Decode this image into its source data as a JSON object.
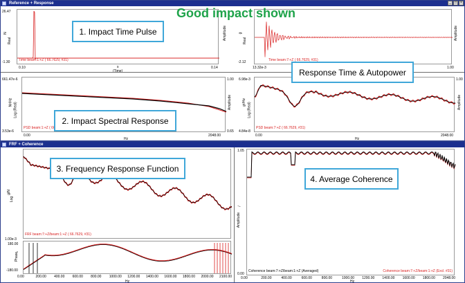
{
  "headline": "Good impact shown",
  "windows": {
    "top": {
      "title": "Reference + Response",
      "buttons": [
        "_",
        "□",
        "×"
      ]
    },
    "bottom": {
      "title": "FRF + Coherence",
      "buttons": [
        "_",
        "□",
        "×"
      ]
    }
  },
  "callouts": {
    "c1": "1. Impact Time Pulse",
    "c2": "2. Impact Spectral Response",
    "c3": "Response Time & Autopower",
    "c4": "3. Frequency Response Function",
    "c5": "4. Average Coherence"
  },
  "panels": {
    "time_ref": {
      "ymax": "26.47",
      "ymin": "-1.30",
      "xmin": "0.10",
      "xmax": "0.14",
      "xunit": "s",
      "xlabel": "(Time)",
      "ylabel_left": "N",
      "ylabel_left2": "Real",
      "ylabel_right": "Amplitude",
      "legend": "Time beam:1:+Z ( 66.7629, #31)"
    },
    "time_resp": {
      "ymin": "-2.12",
      "xmin": "13.32e-3",
      "xmax": "1.00",
      "ylabel_left": "g",
      "ylabel_left2": "Real",
      "ylabel_right": "Amplitude",
      "legend": "Time beam:7:+Z ( 66.7629, #31)"
    },
    "psd_ref": {
      "ymax": "661.47e-6",
      "ymin": "3.53e-6",
      "xmin": "0.00",
      "xmax": "2048.00",
      "xunit": "Hz",
      "rmax": "1.00",
      "rmin": "0.65",
      "ylabel_left": "N²/Hz",
      "ylabel_left2": "Log (Real)",
      "ylabel_right": "Amplitude",
      "legend": "PSD beam:1:+Z ( 66.7629, #31)"
    },
    "psd_resp": {
      "ymax": "6.98e-3",
      "ymin": "4.84e-8",
      "xmin": "0.00",
      "xmax": "2048.00",
      "xunit": "Hz",
      "rmax": "1.00",
      "ylabel_left": "g²/Hz",
      "ylabel_left2": "Log (Real)",
      "ylabel_right": "Amplitude",
      "legend": "PSD beam:7:+Z ( 66.7629, #31)"
    },
    "frf": {
      "ymin": "1.00e-3",
      "ylabel_left": "g/N",
      "ylabel_left2": "Log",
      "phase_top": "180.00",
      "phase_bottom": "-180.00",
      "phase_label": "Phase",
      "phase_unit": "°",
      "legend": "FRF beam:7:+Z/beam:1:+Z ( 66.7629, #31)",
      "xunit": "Hz",
      "xticks": [
        "0.00",
        "200.00",
        "400.00",
        "600.00",
        "800.00",
        "1000.00",
        "1200.00",
        "1400.00",
        "1600.00",
        "1800.00",
        "2000.00",
        "2100.00"
      ]
    },
    "coh": {
      "ymax": "1.05",
      "ymin": "0.00",
      "ylabel_left": "/",
      "ylabel_left2": "Amplitude",
      "legend_left": "Coherence beam:7:+Z/beam:1:+Z (Averaged)",
      "legend_right": "Coherence beam:7:+Z/beam:1:+Z (Excl. #31)",
      "xunit": "Hz",
      "xticks": [
        "0.00",
        "200.00",
        "400.00",
        "600.00",
        "800.00",
        "1000.00",
        "1200.00",
        "1400.00",
        "1600.00",
        "1800.00",
        "2048.00"
      ]
    }
  },
  "colors": {
    "titlebar": "#1c2f8f",
    "callout_border": "#3fa7d9",
    "headline": "#1ea34a",
    "trace_red": "#d81e1e",
    "trace_black": "#000000"
  }
}
